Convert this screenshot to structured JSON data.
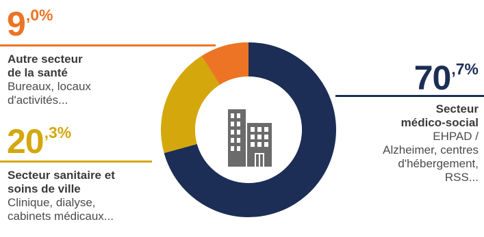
{
  "chart_data": {
    "type": "pie",
    "donut": true,
    "center_icon": "office-building-icon",
    "slices": [
      {
        "key": "medico_social",
        "value": 70.7,
        "int_part": "70",
        "dec_part": ",7%",
        "title": "Secteur médico-social",
        "title_lines": [
          "Secteur",
          "médico-social"
        ],
        "desc_lines": [
          "EHPAD /",
          "Alzheimer, centres",
          "d'hébergement,",
          "RSS..."
        ],
        "color": "#1c2e55"
      },
      {
        "key": "sanitaire",
        "value": 20.3,
        "int_part": "20",
        "dec_part": ",3%",
        "title": "Secteur sanitaire et soins de ville",
        "title_lines": [
          "Secteur sanitaire et",
          "soins de ville"
        ],
        "desc_lines": [
          "Clinique, dialyse,",
          "cabinets médicaux..."
        ],
        "color": "#d4a70c"
      },
      {
        "key": "autre_sante",
        "value": 9.0,
        "int_part": "9",
        "dec_part": ",0%",
        "title": "Autre secteur de la santé",
        "title_lines": [
          "Autre secteur",
          "de la santé"
        ],
        "desc_lines": [
          "Bureaux, locaux",
          "d'activités..."
        ],
        "color": "#ec7424"
      }
    ],
    "icon_color": "#6b6b6b"
  }
}
